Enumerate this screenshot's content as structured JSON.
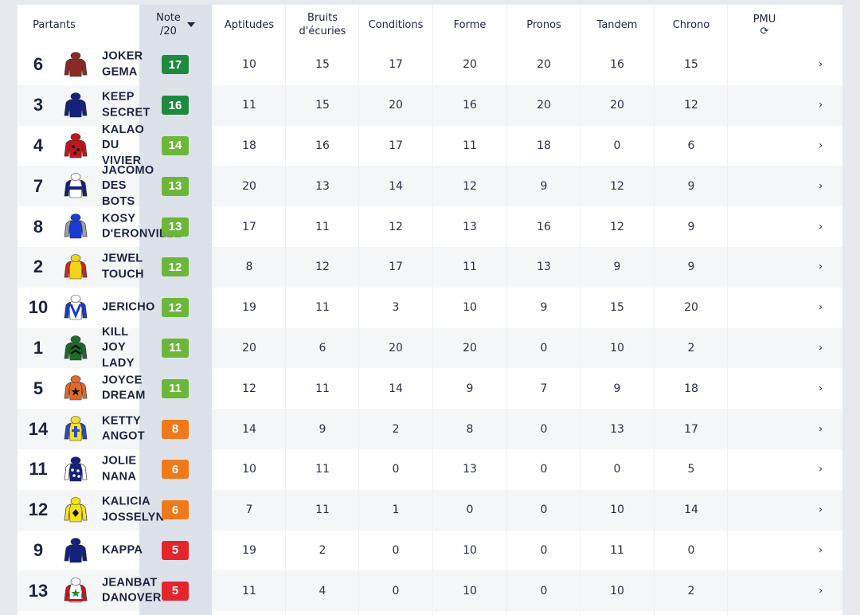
{
  "header": {
    "partants": "Partants",
    "note_line1": "Note",
    "note_line2": "/20",
    "columns": [
      {
        "line1": "Aptitudes",
        "line2": ""
      },
      {
        "line1": "Bruits",
        "line2": "d'écuries"
      },
      {
        "line1": "Conditions",
        "line2": ""
      },
      {
        "line1": "Forme",
        "line2": ""
      },
      {
        "line1": "Pronos",
        "line2": ""
      },
      {
        "line1": "Tandem",
        "line2": ""
      },
      {
        "line1": "Chrono",
        "line2": ""
      },
      {
        "line1": "PMU",
        "line2": "⟳"
      }
    ]
  },
  "colors": {
    "note_dark_green": "#1f8a3d",
    "note_green": "#6cb63a",
    "note_orange": "#f07a1a",
    "note_red": "#e3262b"
  },
  "rows": [
    {
      "num": "6",
      "name": "JOKER\nGEMA",
      "note": "17",
      "note_color": "#1f8a3d",
      "silk": "brown",
      "values": [
        "10",
        "15",
        "17",
        "20",
        "20",
        "16",
        "15"
      ],
      "arrow": "›"
    },
    {
      "num": "3",
      "name": "KEEP\nSECRET",
      "note": "16",
      "note_color": "#1f8a3d",
      "silk": "navy",
      "values": [
        "11",
        "15",
        "20",
        "16",
        "20",
        "20",
        "12"
      ],
      "arrow": "›"
    },
    {
      "num": "4",
      "name": "KALAO\nDU\nVIVIER",
      "note": "14",
      "note_color": "#6cb63a",
      "silk": "red-dots",
      "values": [
        "18",
        "16",
        "17",
        "11",
        "18",
        "0",
        "6"
      ],
      "arrow": "›"
    },
    {
      "num": "7",
      "name": "JACOMO\nDES\nBOTS",
      "note": "13",
      "note_color": "#6cb63a",
      "silk": "navy-white",
      "values": [
        "20",
        "13",
        "14",
        "12",
        "9",
        "12",
        "9"
      ],
      "arrow": "›"
    },
    {
      "num": "8",
      "name": "KOSY\nD'ERONVILLE",
      "note": "13",
      "note_color": "#6cb63a",
      "silk": "blue-grey",
      "values": [
        "17",
        "11",
        "12",
        "13",
        "16",
        "12",
        "9"
      ],
      "arrow": "›"
    },
    {
      "num": "2",
      "name": "JEWEL\nTOUCH",
      "note": "12",
      "note_color": "#6cb63a",
      "silk": "yellow-red",
      "values": [
        "8",
        "12",
        "17",
        "11",
        "13",
        "9",
        "9"
      ],
      "arrow": "›"
    },
    {
      "num": "10",
      "name": "JERICHO",
      "note": "12",
      "note_color": "#6cb63a",
      "silk": "white-blue",
      "values": [
        "19",
        "11",
        "3",
        "10",
        "9",
        "15",
        "20"
      ],
      "arrow": "›"
    },
    {
      "num": "1",
      "name": "KILL\nJOY\nLADY",
      "note": "11",
      "note_color": "#6cb63a",
      "silk": "green-chevron",
      "values": [
        "20",
        "6",
        "20",
        "20",
        "0",
        "10",
        "2"
      ],
      "arrow": "›"
    },
    {
      "num": "5",
      "name": "JOYCE\nDREAM",
      "note": "11",
      "note_color": "#6cb63a",
      "silk": "orange-star",
      "values": [
        "12",
        "11",
        "14",
        "9",
        "7",
        "9",
        "18"
      ],
      "arrow": "›"
    },
    {
      "num": "14",
      "name": "KETTY\nANGOT",
      "note": "8",
      "note_color": "#f07a1a",
      "silk": "yellow-cross",
      "values": [
        "14",
        "9",
        "2",
        "8",
        "0",
        "13",
        "17"
      ],
      "arrow": "›"
    },
    {
      "num": "11",
      "name": "JOLIE\nNANA",
      "note": "6",
      "note_color": "#f07a1a",
      "silk": "white-navy-dots",
      "values": [
        "10",
        "11",
        "0",
        "13",
        "0",
        "0",
        "5"
      ],
      "arrow": "›"
    },
    {
      "num": "12",
      "name": "KALICIA\nJOSSELYN",
      "note": "6",
      "note_color": "#f07a1a",
      "silk": "yellow-diamond",
      "values": [
        "7",
        "11",
        "1",
        "0",
        "0",
        "10",
        "14"
      ],
      "arrow": "›"
    },
    {
      "num": "9",
      "name": "KAPPA",
      "note": "5",
      "note_color": "#e3262b",
      "silk": "navy",
      "values": [
        "19",
        "2",
        "0",
        "10",
        "0",
        "11",
        "0"
      ],
      "arrow": "›"
    },
    {
      "num": "13",
      "name": "JEANBAT\nDANOVER",
      "note": "5",
      "note_color": "#e3262b",
      "silk": "white-green-star",
      "values": [
        "11",
        "4",
        "0",
        "10",
        "0",
        "10",
        "2"
      ],
      "arrow": "›"
    }
  ]
}
